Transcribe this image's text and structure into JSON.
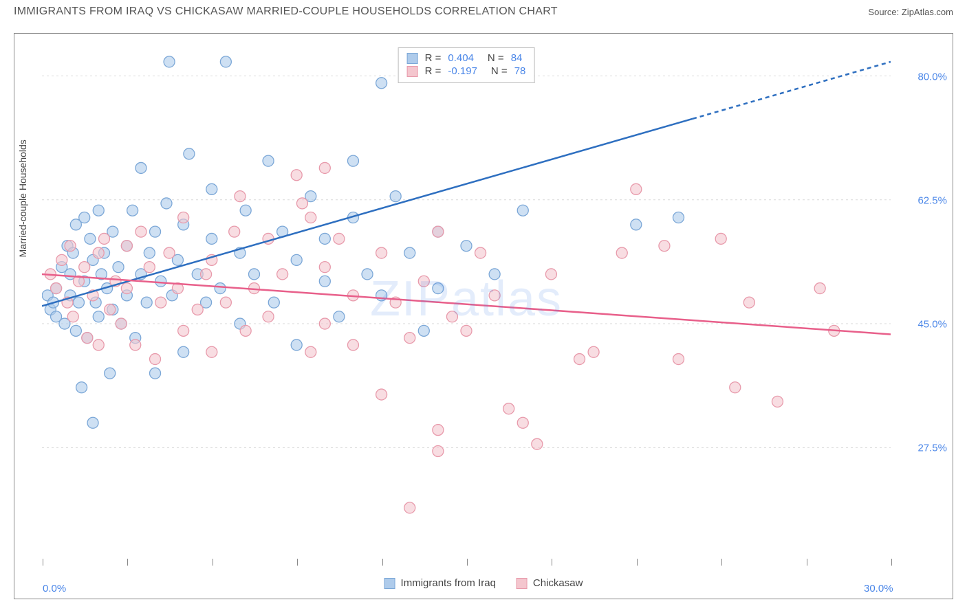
{
  "header": {
    "title": "IMMIGRANTS FROM IRAQ VS CHICKASAW MARRIED-COUPLE HOUSEHOLDS CORRELATION CHART",
    "source_label": "Source:",
    "source_name": "ZipAtlas.com"
  },
  "chart": {
    "type": "scatter",
    "ylabel": "Married-couple Households",
    "watermark": "ZIPatlas",
    "xlim": [
      0,
      30
    ],
    "ylim": [
      12,
      85
    ],
    "x_ticks_minor": [
      0,
      3,
      6,
      9,
      12,
      15,
      18,
      21,
      24,
      27,
      30
    ],
    "x_ticks_label": [
      {
        "v": 0,
        "label": "0.0%"
      },
      {
        "v": 30,
        "label": "30.0%"
      }
    ],
    "y_ticks": [
      {
        "v": 27.5,
        "label": "27.5%"
      },
      {
        "v": 45.0,
        "label": "45.0%"
      },
      {
        "v": 62.5,
        "label": "62.5%"
      },
      {
        "v": 80.0,
        "label": "80.0%"
      }
    ],
    "grid_color": "#d9d9d9",
    "axis_color": "#888888",
    "background_color": "#ffffff",
    "series": [
      {
        "id": "iraq",
        "label": "Immigrants from Iraq",
        "fill": "#aecbeb",
        "stroke": "#7ba7d7",
        "line_color": "#2e6fc0",
        "marker_radius": 8,
        "trend": {
          "x1": 0,
          "y1": 47.5,
          "x2": 30,
          "y2": 82,
          "dash_after_x": 23
        },
        "R": "0.404",
        "N": "84",
        "points": [
          [
            0.2,
            49
          ],
          [
            0.3,
            47
          ],
          [
            0.4,
            48
          ],
          [
            0.5,
            50
          ],
          [
            0.5,
            46
          ],
          [
            0.7,
            53
          ],
          [
            0.8,
            45
          ],
          [
            0.9,
            56
          ],
          [
            1.0,
            52
          ],
          [
            1.0,
            49
          ],
          [
            1.1,
            55
          ],
          [
            1.2,
            44
          ],
          [
            1.2,
            59
          ],
          [
            1.3,
            48
          ],
          [
            1.4,
            36
          ],
          [
            1.5,
            60
          ],
          [
            1.5,
            51
          ],
          [
            1.6,
            43
          ],
          [
            1.7,
            57
          ],
          [
            1.8,
            54
          ],
          [
            1.8,
            31
          ],
          [
            1.9,
            48
          ],
          [
            2.0,
            61
          ],
          [
            2.0,
            46
          ],
          [
            2.1,
            52
          ],
          [
            2.2,
            55
          ],
          [
            2.3,
            50
          ],
          [
            2.4,
            38
          ],
          [
            2.5,
            58
          ],
          [
            2.5,
            47
          ],
          [
            2.7,
            53
          ],
          [
            2.8,
            45
          ],
          [
            3.0,
            56
          ],
          [
            3.0,
            49
          ],
          [
            3.2,
            61
          ],
          [
            3.3,
            43
          ],
          [
            3.5,
            52
          ],
          [
            3.5,
            67
          ],
          [
            3.7,
            48
          ],
          [
            3.8,
            55
          ],
          [
            4.0,
            58
          ],
          [
            4.0,
            38
          ],
          [
            4.2,
            51
          ],
          [
            4.4,
            62
          ],
          [
            4.5,
            82
          ],
          [
            4.6,
            49
          ],
          [
            4.8,
            54
          ],
          [
            5.0,
            59
          ],
          [
            5.0,
            41
          ],
          [
            5.2,
            69
          ],
          [
            5.5,
            52
          ],
          [
            5.8,
            48
          ],
          [
            6.0,
            57
          ],
          [
            6.0,
            64
          ],
          [
            6.3,
            50
          ],
          [
            6.5,
            82
          ],
          [
            7.0,
            55
          ],
          [
            7.0,
            45
          ],
          [
            7.2,
            61
          ],
          [
            7.5,
            52
          ],
          [
            8.0,
            68
          ],
          [
            8.2,
            48
          ],
          [
            8.5,
            58
          ],
          [
            9.0,
            54
          ],
          [
            9.0,
            42
          ],
          [
            9.5,
            63
          ],
          [
            10.0,
            57
          ],
          [
            10.0,
            51
          ],
          [
            10.5,
            46
          ],
          [
            11.0,
            60
          ],
          [
            11.0,
            68
          ],
          [
            11.5,
            52
          ],
          [
            12.0,
            49
          ],
          [
            12.0,
            79
          ],
          [
            12.5,
            63
          ],
          [
            13.0,
            55
          ],
          [
            13.5,
            44
          ],
          [
            14.0,
            58
          ],
          [
            14.0,
            50
          ],
          [
            15.0,
            56
          ],
          [
            16.0,
            52
          ],
          [
            17.0,
            61
          ],
          [
            21.0,
            59
          ],
          [
            22.5,
            60
          ]
        ]
      },
      {
        "id": "chickasaw",
        "label": "Chickasaw",
        "fill": "#f4c6ce",
        "stroke": "#e89aab",
        "line_color": "#e85f8a",
        "marker_radius": 8,
        "trend": {
          "x1": 0,
          "y1": 52,
          "x2": 30,
          "y2": 43.5,
          "dash_after_x": 30
        },
        "R": "-0.197",
        "N": "78",
        "points": [
          [
            0.3,
            52
          ],
          [
            0.5,
            50
          ],
          [
            0.7,
            54
          ],
          [
            0.9,
            48
          ],
          [
            1.0,
            56
          ],
          [
            1.1,
            46
          ],
          [
            1.3,
            51
          ],
          [
            1.5,
            53
          ],
          [
            1.6,
            43
          ],
          [
            1.8,
            49
          ],
          [
            2.0,
            55
          ],
          [
            2.0,
            42
          ],
          [
            2.2,
            57
          ],
          [
            2.4,
            47
          ],
          [
            2.6,
            51
          ],
          [
            2.8,
            45
          ],
          [
            3.0,
            56
          ],
          [
            3.0,
            50
          ],
          [
            3.3,
            42
          ],
          [
            3.5,
            58
          ],
          [
            3.8,
            53
          ],
          [
            4.0,
            40
          ],
          [
            4.2,
            48
          ],
          [
            4.5,
            55
          ],
          [
            4.8,
            50
          ],
          [
            5.0,
            44
          ],
          [
            5.0,
            60
          ],
          [
            5.5,
            47
          ],
          [
            5.8,
            52
          ],
          [
            6.0,
            54
          ],
          [
            6.0,
            41
          ],
          [
            6.5,
            48
          ],
          [
            6.8,
            58
          ],
          [
            7.0,
            63
          ],
          [
            7.2,
            44
          ],
          [
            7.5,
            50
          ],
          [
            8.0,
            57
          ],
          [
            8.0,
            46
          ],
          [
            8.5,
            52
          ],
          [
            9.0,
            66
          ],
          [
            9.2,
            62
          ],
          [
            9.5,
            60
          ],
          [
            9.5,
            41
          ],
          [
            10.0,
            53
          ],
          [
            10.0,
            67
          ],
          [
            10.0,
            45
          ],
          [
            10.5,
            57
          ],
          [
            11.0,
            49
          ],
          [
            11.0,
            42
          ],
          [
            12.0,
            55
          ],
          [
            12.0,
            35
          ],
          [
            12.5,
            48
          ],
          [
            13.0,
            43
          ],
          [
            13.0,
            19
          ],
          [
            13.5,
            51
          ],
          [
            14.0,
            58
          ],
          [
            14.0,
            30
          ],
          [
            14.0,
            27
          ],
          [
            14.5,
            46
          ],
          [
            15.0,
            44
          ],
          [
            15.5,
            55
          ],
          [
            16.0,
            49
          ],
          [
            16.5,
            33
          ],
          [
            17.0,
            31
          ],
          [
            17.5,
            28
          ],
          [
            18.0,
            52
          ],
          [
            19.0,
            40
          ],
          [
            19.5,
            41
          ],
          [
            20.5,
            55
          ],
          [
            21.0,
            64
          ],
          [
            22.0,
            56
          ],
          [
            22.5,
            40
          ],
          [
            24.0,
            57
          ],
          [
            24.5,
            36
          ],
          [
            25.0,
            48
          ],
          [
            26.0,
            34
          ],
          [
            27.5,
            50
          ],
          [
            28.0,
            44
          ]
        ]
      }
    ],
    "correlation_box": {
      "rows": [
        {
          "swatch_fill": "#aecbeb",
          "swatch_stroke": "#7ba7d7",
          "R": "0.404",
          "N": "84"
        },
        {
          "swatch_fill": "#f4c6ce",
          "swatch_stroke": "#e89aab",
          "R": "-0.197",
          "N": "78"
        }
      ]
    }
  }
}
